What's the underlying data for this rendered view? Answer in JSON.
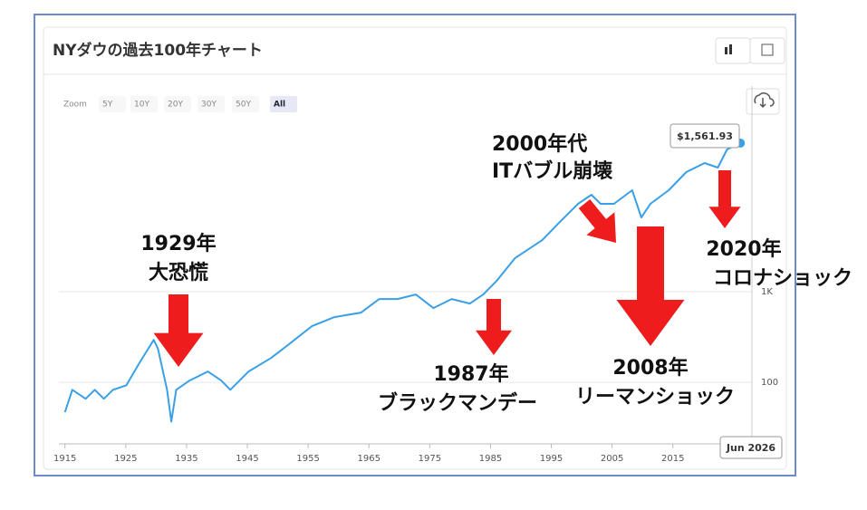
{
  "chart_data": {
    "type": "line",
    "title": "NYダウの過去100年チャート",
    "zoom_buttons": [
      "Zoom",
      "5Y",
      "10Y",
      "20Y",
      "30Y",
      "50Y",
      "All"
    ],
    "log_scale": true,
    "grid": true,
    "x": [
      1915,
      1916.2,
      1918.4,
      1919.9,
      1921.4,
      1922.9,
      1925.1,
      1927.3,
      1929.6,
      1930.3,
      1931.8,
      1932.5,
      1933.3,
      1935.5,
      1938.5,
      1940.7,
      1942.2,
      1945.2,
      1948.9,
      1951.8,
      1955.6,
      1959.3,
      1963.7,
      1966.7,
      1969.7,
      1972.7,
      1975.6,
      1978.6,
      1981.6,
      1983.8,
      1986.0,
      1989.0,
      1993.5,
      1996.4,
      1999.4,
      2001.6,
      2003.1,
      2005.3,
      2008.3,
      2009.8,
      2011.3,
      2014.3,
      2017.2,
      2020.2,
      2022.4,
      2023.9,
      2026.1
    ],
    "series": [
      {
        "color": "#3aa0e6",
        "values": [
          47,
          83,
          66,
          83,
          66,
          83,
          93,
          166,
          295,
          234,
          83,
          37,
          83,
          105,
          132,
          105,
          83,
          132,
          186,
          263,
          417,
          525,
          589,
          832,
          832,
          933,
          661,
          832,
          741,
          933,
          1318,
          2344,
          3715,
          5888,
          9333,
          11749,
          9333,
          9333,
          13183,
          6607,
          9333,
          13183,
          20893,
          26303,
          23442,
          37154,
          43652
        ]
      }
    ],
    "xlim": [
      1914,
      2028
    ],
    "xticks": [
      1915,
      1925,
      1935,
      1945,
      1955,
      1965,
      1975,
      1985,
      1995,
      2005,
      2015
    ],
    "ylim": [
      21,
      186000
    ],
    "yticks": [
      100,
      {
        "value": 1000,
        "label": "1K"
      }
    ],
    "tooltip": "$1,561.93",
    "crosshair_label": "Jun 2026",
    "annotations": [
      [
        "1929年",
        "大恐慌"
      ],
      [
        "2000年代",
        "ITバブル崩壊"
      ],
      [
        "1987年",
        "ブラックマンデー"
      ],
      [
        "2008年",
        "リーマンショック"
      ],
      [
        "2020年",
        "コロナショック"
      ]
    ]
  }
}
